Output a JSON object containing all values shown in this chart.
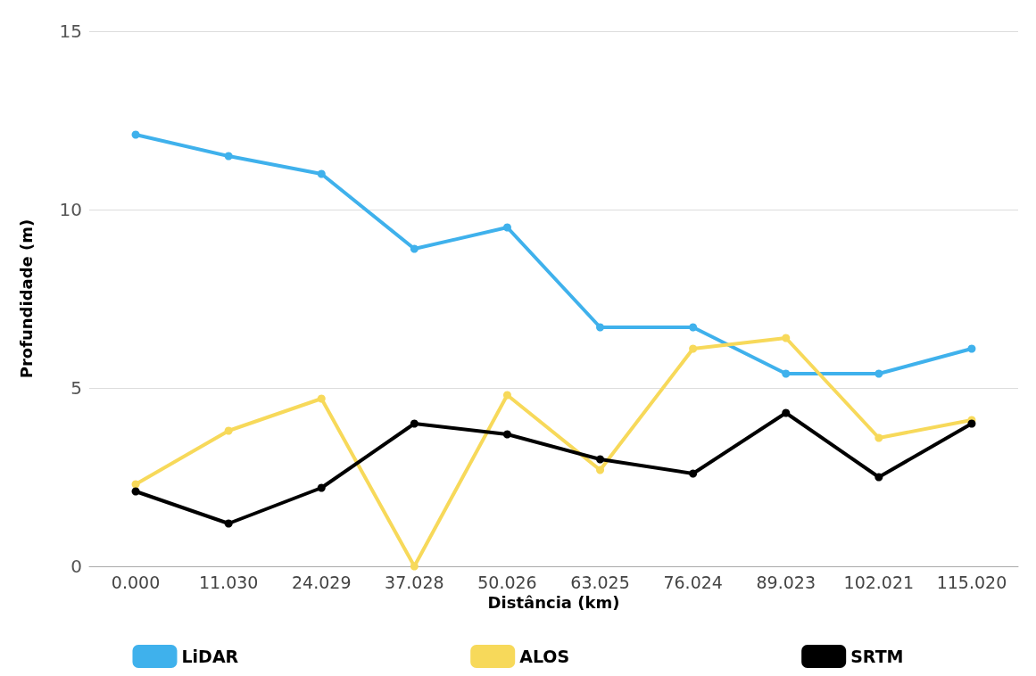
{
  "chart_data": {
    "type": "line",
    "xlabel": "Distância (km)",
    "ylabel": "Profundidade (m)",
    "categories": [
      "0.000",
      "11.030",
      "24.029",
      "37.028",
      "50.026",
      "63.025",
      "76.024",
      "89.023",
      "102.021",
      "115.020"
    ],
    "series": [
      {
        "name": "LiDAR",
        "color": "#3fb1ec",
        "values": [
          12.1,
          11.5,
          11.0,
          8.9,
          9.5,
          6.7,
          6.7,
          5.4,
          5.4,
          6.1
        ]
      },
      {
        "name": "ALOS",
        "color": "#f7d95a",
        "values": [
          2.3,
          3.8,
          4.7,
          0,
          4.8,
          2.7,
          6.1,
          6.4,
          3.6,
          4.1
        ]
      },
      {
        "name": "SRTM",
        "color": "#000000",
        "values": [
          2.1,
          1.2,
          2.2,
          4.0,
          3.7,
          3.0,
          2.6,
          4.3,
          2.5,
          4.0
        ]
      }
    ],
    "ylim": [
      0,
      15
    ],
    "yticks": [
      0,
      5,
      10,
      15
    ],
    "grid": "y",
    "legend": "bottom",
    "marker": "circle",
    "line_style": "solid"
  }
}
